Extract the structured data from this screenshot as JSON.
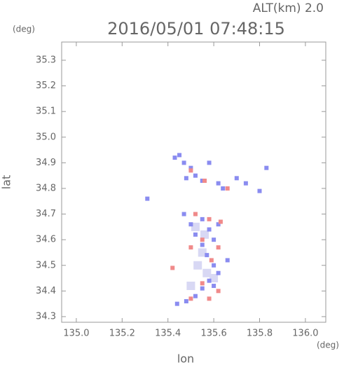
{
  "chart_data": {
    "type": "scatter",
    "title": "2016/05/01 07:48:15",
    "annotation": "ALT(km) 2.0",
    "y_unit": "(deg)",
    "x_unit": "(deg)",
    "xlabel": "lon",
    "ylabel": "lat",
    "xlim": [
      134.936,
      136.089
    ],
    "ylim": [
      34.278,
      35.371
    ],
    "xticks": [
      {
        "value": 135,
        "label": "135.0"
      },
      135.2,
      135.4,
      135.6,
      135.8,
      {
        "value": 136,
        "label": "136.0"
      }
    ],
    "yticks": [
      34.3,
      34.4,
      34.5,
      34.6,
      34.7,
      34.8,
      34.9,
      {
        "value": 35,
        "label": "35.0"
      },
      35.1,
      35.2,
      35.3
    ],
    "series": [
      {
        "color": "#d8d8f4",
        "x": [
          135.52,
          135.55,
          135.53,
          135.57,
          135.5,
          135.56,
          135.6
        ],
        "y": [
          34.65,
          34.55,
          34.5,
          34.47,
          34.42,
          34.62,
          34.45
        ]
      },
      {
        "color": "#8a8cf0",
        "x": [
          135.43,
          135.45,
          135.47,
          135.5,
          135.52,
          135.55,
          135.58,
          135.62,
          135.64,
          135.7,
          135.74,
          135.8,
          135.83,
          135.48,
          135.47,
          135.5,
          135.52,
          135.55,
          135.58,
          135.6,
          135.62,
          135.55,
          135.57,
          135.6,
          135.62,
          135.58,
          135.55,
          135.52,
          135.48,
          135.44,
          135.66,
          135.6,
          135.31
        ],
        "y": [
          34.92,
          34.93,
          34.9,
          34.88,
          34.85,
          34.83,
          34.9,
          34.82,
          34.8,
          34.84,
          34.82,
          34.79,
          34.88,
          34.84,
          34.7,
          34.66,
          34.62,
          34.68,
          34.64,
          34.6,
          34.66,
          34.58,
          34.54,
          34.5,
          34.47,
          34.44,
          34.41,
          34.38,
          34.36,
          34.35,
          34.52,
          34.42,
          34.76
        ]
      },
      {
        "color": "#f08a8a",
        "x": [
          135.5,
          135.56,
          135.66,
          135.52,
          135.58,
          135.63,
          135.55,
          135.5,
          135.62,
          135.59,
          135.42,
          135.62,
          135.55,
          135.58,
          135.5
        ],
        "y": [
          34.87,
          34.83,
          34.8,
          34.7,
          34.68,
          34.67,
          34.6,
          34.57,
          34.57,
          34.52,
          34.49,
          34.4,
          34.43,
          34.37,
          34.37
        ]
      }
    ]
  }
}
